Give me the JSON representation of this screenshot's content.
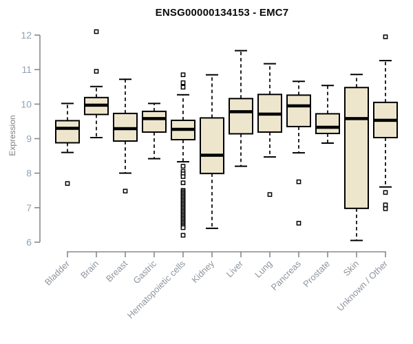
{
  "chart_data": {
    "type": "boxplot",
    "title": "ENSG00000134153 - EMC7",
    "ylabel": "Expression",
    "xlabel": "",
    "ylim": [
      6,
      12
    ],
    "yticks": [
      6,
      7,
      8,
      9,
      10,
      11,
      12
    ],
    "grid": false,
    "legend": "none",
    "box_fill": "#EDE6CD",
    "box_stroke": "#000000",
    "axis_color": "#888888",
    "ytick_label_color": "#93A1B4",
    "xtick_label_color": "#8D959E",
    "title_color": "#0a0a0a",
    "categories": [
      "Bladder",
      "Brain",
      "Breast",
      "Gastric",
      "Hematopoietic cells",
      "Kidney",
      "Liver",
      "Lung",
      "Pancreas",
      "Prostate",
      "Skin",
      "Unknown / Other"
    ],
    "series": [
      {
        "name": "Bladder",
        "whisker_low": 8.6,
        "q1": 8.88,
        "median": 9.3,
        "q3": 9.52,
        "whisker_high": 10.02,
        "outliers": [
          7.7
        ]
      },
      {
        "name": "Brain",
        "whisker_low": 9.03,
        "q1": 9.7,
        "median": 9.97,
        "q3": 10.19,
        "whisker_high": 10.51,
        "outliers": [
          10.95,
          12.1
        ]
      },
      {
        "name": "Breast",
        "whisker_low": 8.0,
        "q1": 8.93,
        "median": 9.29,
        "q3": 9.73,
        "whisker_high": 10.72,
        "outliers": [
          7.48
        ]
      },
      {
        "name": "Gastric",
        "whisker_low": 8.42,
        "q1": 9.19,
        "median": 9.58,
        "q3": 9.79,
        "whisker_high": 10.02,
        "outliers": []
      },
      {
        "name": "Hematopoietic cells",
        "whisker_low": 8.33,
        "q1": 8.97,
        "median": 9.27,
        "q3": 9.53,
        "whisker_high": 10.27,
        "outliers": [
          10.85,
          10.62,
          10.49,
          8.2,
          8.05,
          7.98,
          7.9,
          7.72,
          7.5,
          7.46,
          7.42,
          7.38,
          7.34,
          7.3,
          7.26,
          7.22,
          7.18,
          7.14,
          7.1,
          7.06,
          7.02,
          6.98,
          6.94,
          6.9,
          6.86,
          6.82,
          6.78,
          6.74,
          6.7,
          6.66,
          6.62,
          6.58,
          6.54,
          6.5,
          6.46,
          6.42,
          6.2
        ]
      },
      {
        "name": "Kidney",
        "whisker_low": 6.4,
        "q1": 7.99,
        "median": 8.52,
        "q3": 9.6,
        "whisker_high": 10.85,
        "outliers": []
      },
      {
        "name": "Liver",
        "whisker_low": 8.2,
        "q1": 9.14,
        "median": 9.78,
        "q3": 10.16,
        "whisker_high": 11.55,
        "outliers": []
      },
      {
        "name": "Lung",
        "whisker_low": 8.47,
        "q1": 9.19,
        "median": 9.71,
        "q3": 10.28,
        "whisker_high": 11.17,
        "outliers": [
          7.38
        ]
      },
      {
        "name": "Pancreas",
        "whisker_low": 8.59,
        "q1": 9.35,
        "median": 9.95,
        "q3": 10.26,
        "whisker_high": 10.66,
        "outliers": [
          7.75,
          6.55
        ]
      },
      {
        "name": "Prostate",
        "whisker_low": 8.87,
        "q1": 9.15,
        "median": 9.33,
        "q3": 9.72,
        "whisker_high": 10.54,
        "outliers": []
      },
      {
        "name": "Skin",
        "whisker_low": 6.05,
        "q1": 6.98,
        "median": 9.58,
        "q3": 10.48,
        "whisker_high": 10.86,
        "outliers": []
      },
      {
        "name": "Unknown / Other",
        "whisker_low": 7.6,
        "q1": 9.03,
        "median": 9.53,
        "q3": 10.05,
        "whisker_high": 11.26,
        "outliers": [
          11.95,
          7.44,
          7.08,
          6.97
        ]
      }
    ]
  }
}
